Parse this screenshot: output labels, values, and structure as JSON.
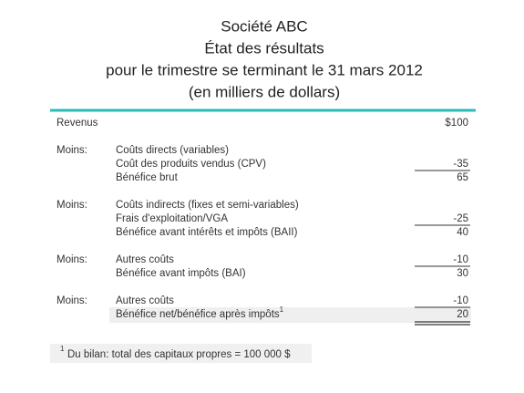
{
  "header": {
    "company": "Société ABC",
    "statement": "État des résultats",
    "period": "pour le trimestre se terminant le 31 mars 2012",
    "units": "(en milliers de dollars)"
  },
  "revenue": {
    "label": "Revenus",
    "amount": "$100"
  },
  "sections": [
    {
      "prefix": "Moins:",
      "rows": [
        {
          "label": "Coûts directs (variables)"
        },
        {
          "label": "Coût des produits vendus (CPV)",
          "amount": "-35"
        },
        {
          "label": "Bénéfice brut",
          "amount": "65"
        }
      ]
    },
    {
      "prefix": "Moins:",
      "rows": [
        {
          "label": "Coûts indirects (fixes et semi-variables)"
        },
        {
          "label": "Frais d'exploitation/VGA",
          "amount": "-25"
        },
        {
          "label": "Bénéfice avant intérêts et impôts (BAII)",
          "amount": "40"
        }
      ]
    },
    {
      "prefix": "Moins:",
      "rows": [
        {
          "label": "Autres coûts",
          "amount": "-10"
        },
        {
          "label": "Bénéfice avant impôts (BAI)",
          "amount": "30"
        }
      ]
    },
    {
      "prefix": "Moins:",
      "rows": [
        {
          "label": "Autres coûts",
          "amount": "-10"
        },
        {
          "label": "Bénéfice net/bénéfice après impôts",
          "marker": "1",
          "amount": "20"
        }
      ]
    }
  ],
  "footnote": {
    "marker": "1",
    "text": "Du bilan: total des capitaux propres = 100 000 $"
  }
}
